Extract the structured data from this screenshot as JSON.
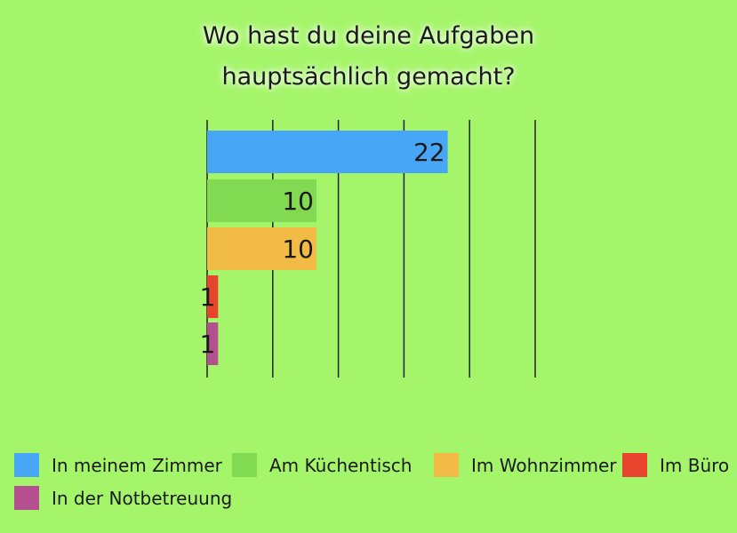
{
  "chart_data": {
    "type": "bar",
    "orientation": "horizontal",
    "title_lines": [
      "Wo hast du deine Aufgaben",
      "hauptsächlich gemacht?"
    ],
    "categories": [
      "In meinem Zimmer",
      "Am Küchentisch",
      "Im Wohnzimmer",
      "Im Büro",
      "In der Notbetreuung"
    ],
    "values": [
      22,
      10,
      10,
      1,
      1
    ],
    "data_labels": [
      "22",
      "10",
      "10",
      "1",
      "1"
    ],
    "colors": [
      "#48a6f7",
      "#82d952",
      "#f2bb45",
      "#e8432d",
      "#b4508f"
    ],
    "xlim": [
      0,
      30
    ],
    "grid": true,
    "gridline_step": 6,
    "legend_position": "bottom"
  }
}
